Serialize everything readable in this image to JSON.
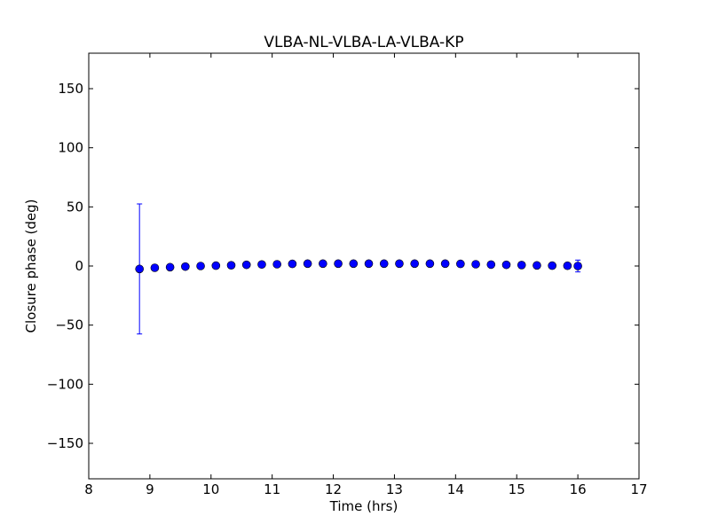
{
  "chart_data": {
    "type": "scatter",
    "title": "VLBA-NL-VLBA-LA-VLBA-KP",
    "xlabel": "Time (hrs)",
    "ylabel": "Closure phase (deg)",
    "xlim": [
      8,
      17
    ],
    "ylim": [
      -180,
      180
    ],
    "xticks": [
      8,
      9,
      10,
      11,
      12,
      13,
      14,
      15,
      16,
      17
    ],
    "xtick_labels": [
      "8",
      "9",
      "10",
      "11",
      "12",
      "13",
      "14",
      "15",
      "16",
      "17"
    ],
    "yticks": [
      -150,
      -100,
      -50,
      0,
      50,
      100,
      150
    ],
    "ytick_labels": [
      "−150",
      "−100",
      "−50",
      "0",
      "50",
      "100",
      "150"
    ],
    "grid": false,
    "marker_color": "#0000ff",
    "errorbar_color": "#0000ff",
    "series": [
      {
        "x": [
          8.83,
          9.08,
          9.33,
          9.58,
          9.83,
          10.08,
          10.33,
          10.58,
          10.83,
          11.08,
          11.33,
          11.58,
          11.83,
          12.08,
          12.33,
          12.58,
          12.83,
          13.08,
          13.33,
          13.58,
          13.83,
          14.08,
          14.33,
          14.58,
          14.83,
          15.08,
          15.33,
          15.58,
          15.83,
          16.0
        ],
        "y": [
          -2.5,
          -1.5,
          -1.0,
          -0.5,
          0,
          0.3,
          0.6,
          1.0,
          1.3,
          1.5,
          1.8,
          2.0,
          2.0,
          2.0,
          2.0,
          2.0,
          2.0,
          2.0,
          2.0,
          2.0,
          2.0,
          1.8,
          1.5,
          1.2,
          1.0,
          0.8,
          0.5,
          0.3,
          0.2,
          0.0
        ],
        "yerr": [
          55,
          2.0,
          1.5,
          1.2,
          1.0,
          1.0,
          1.0,
          1.0,
          1.0,
          1.0,
          1.0,
          1.0,
          1.0,
          1.0,
          1.0,
          1.0,
          1.0,
          1.0,
          1.0,
          1.0,
          1.0,
          1.0,
          1.0,
          1.0,
          1.0,
          1.0,
          1.0,
          1.0,
          1.5,
          5.0
        ]
      }
    ]
  }
}
